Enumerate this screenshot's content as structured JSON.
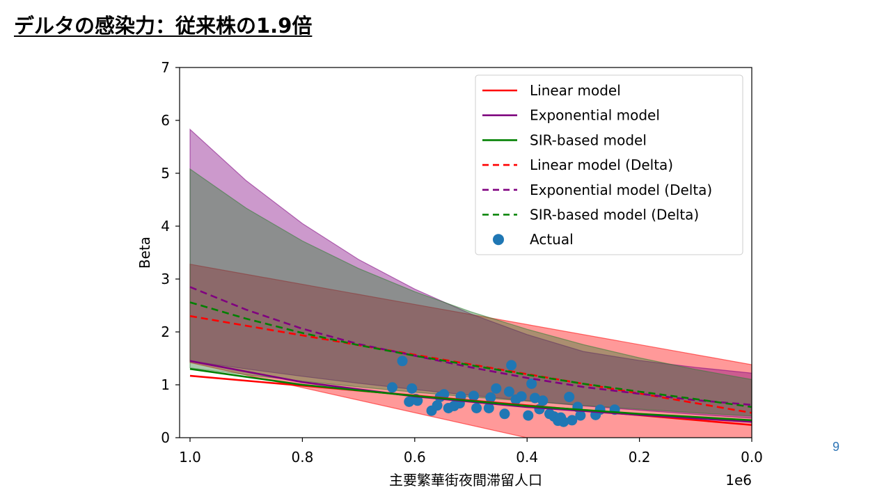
{
  "slide": {
    "title": "デルタの感染力：従来株の1.9倍",
    "page_number": "9"
  },
  "chart_data": {
    "type": "line",
    "xlabel": "主要繁華街夜間滞留人口",
    "ylabel": "Beta",
    "x_offset_label": "1e6",
    "xlim": [
      1.02,
      0.0
    ],
    "ylim": [
      0,
      7
    ],
    "x_ticks": [
      1.0,
      0.8,
      0.6,
      0.4,
      0.2,
      0.0
    ],
    "x_tick_labels": [
      "1.0",
      "0.8",
      "0.6",
      "0.4",
      "0.2",
      "0.0"
    ],
    "y_ticks": [
      0,
      1,
      2,
      3,
      4,
      5,
      6,
      7
    ],
    "y_tick_labels": [
      "0",
      "1",
      "2",
      "3",
      "4",
      "5",
      "6",
      "7"
    ],
    "grid": false,
    "legend_position": "top-right",
    "colors": {
      "linear": "#ff0000",
      "exponential": "#800080",
      "sir": "#008000",
      "actual": "#1f77b4",
      "band_linear": "#ff0000",
      "band_exponential": "#800080",
      "band_sir": "#2e7d32"
    },
    "bands": [
      {
        "model": "linear",
        "x": [
          1.0,
          0.0
        ],
        "upper": [
          3.28,
          1.38
        ],
        "lower": [
          1.42,
          -0.95
        ]
      },
      {
        "model": "exponential",
        "x": [
          1.0,
          0.9,
          0.8,
          0.7,
          0.6,
          0.5,
          0.4,
          0.3,
          0.2,
          0.1,
          0.0
        ],
        "upper": [
          5.83,
          4.86,
          4.05,
          3.37,
          2.81,
          2.34,
          1.95,
          1.63,
          1.46,
          1.33,
          1.22
        ],
        "lower": [
          1.45,
          1.3,
          1.16,
          1.03,
          0.91,
          0.8,
          0.7,
          0.6,
          0.52,
          0.44,
          0.37
        ]
      },
      {
        "model": "sir",
        "x": [
          1.0,
          0.9,
          0.8,
          0.7,
          0.6,
          0.5,
          0.4,
          0.3,
          0.2,
          0.1,
          0.0
        ],
        "upper": [
          5.08,
          4.34,
          3.72,
          3.2,
          2.76,
          2.38,
          2.05,
          1.76,
          1.51,
          1.29,
          1.1
        ],
        "lower": [
          1.32,
          1.19,
          1.07,
          0.96,
          0.86,
          0.77,
          0.69,
          0.61,
          0.54,
          0.47,
          0.41
        ]
      }
    ],
    "series": [
      {
        "name": "Linear model",
        "model": "linear",
        "dashed": false,
        "x": [
          1.0,
          0.0
        ],
        "y": [
          1.17,
          0.24
        ]
      },
      {
        "name": "Exponential model",
        "model": "exponential",
        "dashed": false,
        "x": [
          1.0,
          0.8,
          0.6,
          0.4,
          0.2,
          0.0
        ],
        "y": [
          1.45,
          1.05,
          0.78,
          0.58,
          0.43,
          0.3
        ]
      },
      {
        "name": "SIR-based model",
        "model": "sir",
        "dashed": false,
        "x": [
          1.0,
          0.8,
          0.6,
          0.4,
          0.2,
          0.0
        ],
        "y": [
          1.3,
          1.0,
          0.79,
          0.6,
          0.45,
          0.33
        ]
      },
      {
        "name": "Linear model (Delta)",
        "model": "linear",
        "dashed": true,
        "x": [
          1.0,
          0.0
        ],
        "y": [
          2.3,
          0.47
        ]
      },
      {
        "name": "Exponential model (Delta)",
        "model": "exponential",
        "dashed": true,
        "x": [
          1.0,
          0.9,
          0.8,
          0.7,
          0.6,
          0.5,
          0.4,
          0.3,
          0.2,
          0.1,
          0.0
        ],
        "y": [
          2.85,
          2.42,
          2.06,
          1.77,
          1.55,
          1.33,
          1.13,
          0.96,
          0.83,
          0.71,
          0.62
        ]
      },
      {
        "name": "SIR-based model (Delta)",
        "model": "sir",
        "dashed": true,
        "x": [
          1.0,
          0.9,
          0.8,
          0.7,
          0.6,
          0.5,
          0.4,
          0.3,
          0.2,
          0.1,
          0.0
        ],
        "y": [
          2.56,
          2.25,
          1.98,
          1.75,
          1.55,
          1.37,
          1.19,
          1.02,
          0.87,
          0.73,
          0.58
        ]
      }
    ],
    "actual_label": "Actual",
    "actual": [
      {
        "x": 0.64,
        "y": 0.95
      },
      {
        "x": 0.622,
        "y": 1.45
      },
      {
        "x": 0.61,
        "y": 0.68
      },
      {
        "x": 0.605,
        "y": 0.93
      },
      {
        "x": 0.598,
        "y": 0.73
      },
      {
        "x": 0.595,
        "y": 0.7
      },
      {
        "x": 0.57,
        "y": 0.51
      },
      {
        "x": 0.56,
        "y": 0.61
      },
      {
        "x": 0.555,
        "y": 0.77
      },
      {
        "x": 0.548,
        "y": 0.82
      },
      {
        "x": 0.54,
        "y": 0.56
      },
      {
        "x": 0.53,
        "y": 0.6
      },
      {
        "x": 0.52,
        "y": 0.65
      },
      {
        "x": 0.518,
        "y": 0.78
      },
      {
        "x": 0.495,
        "y": 0.79
      },
      {
        "x": 0.49,
        "y": 0.56
      },
      {
        "x": 0.468,
        "y": 0.56
      },
      {
        "x": 0.465,
        "y": 0.76
      },
      {
        "x": 0.455,
        "y": 0.93
      },
      {
        "x": 0.44,
        "y": 0.45
      },
      {
        "x": 0.432,
        "y": 0.87
      },
      {
        "x": 0.428,
        "y": 1.37
      },
      {
        "x": 0.42,
        "y": 0.72
      },
      {
        "x": 0.41,
        "y": 0.78
      },
      {
        "x": 0.398,
        "y": 0.42
      },
      {
        "x": 0.392,
        "y": 1.02
      },
      {
        "x": 0.386,
        "y": 0.75
      },
      {
        "x": 0.378,
        "y": 0.54
      },
      {
        "x": 0.372,
        "y": 0.7
      },
      {
        "x": 0.36,
        "y": 0.45
      },
      {
        "x": 0.352,
        "y": 0.4
      },
      {
        "x": 0.345,
        "y": 0.32
      },
      {
        "x": 0.34,
        "y": 0.38
      },
      {
        "x": 0.335,
        "y": 0.3
      },
      {
        "x": 0.325,
        "y": 0.77
      },
      {
        "x": 0.32,
        "y": 0.33
      },
      {
        "x": 0.31,
        "y": 0.58
      },
      {
        "x": 0.305,
        "y": 0.42
      },
      {
        "x": 0.278,
        "y": 0.43
      },
      {
        "x": 0.27,
        "y": 0.53
      },
      {
        "x": 0.244,
        "y": 0.53
      }
    ]
  }
}
